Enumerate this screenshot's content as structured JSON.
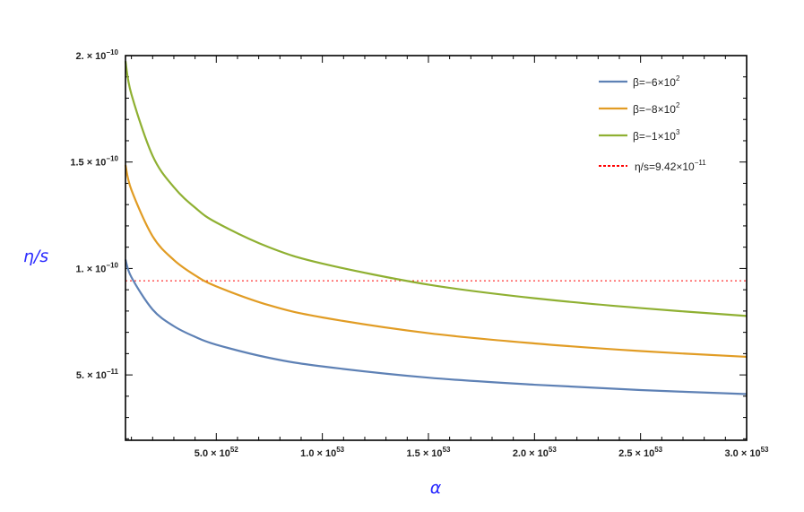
{
  "chart_data": {
    "type": "line",
    "title": "",
    "xlabel": "α",
    "ylabel": "η/s",
    "xlim": [
      7.2e+51,
      3e+53
    ],
    "ylim": [
      1.93e-11,
      2e-10
    ],
    "grid": false,
    "legend_position": "top-right",
    "x": [
      7.2e+51,
      1e+52,
      2e+52,
      3e+52,
      4e+52,
      5e+52,
      7.5e+52,
      1e+53,
      1.5e+53,
      2e+53,
      2.5e+53,
      3e+53
    ],
    "series": [
      {
        "name": "β=−6×10^2",
        "label_main": "β=−6×10",
        "label_exp": "2",
        "color": "#5e81b5",
        "values": [
          1.042e-10,
          9.59e-11,
          8.07e-11,
          7.29e-11,
          6.79e-11,
          6.42e-11,
          5.8e-11,
          5.4e-11,
          4.87e-11,
          4.54e-11,
          4.29e-11,
          4.1e-11
        ]
      },
      {
        "name": "β=−8×10^2",
        "label_main": "β=−8×10",
        "label_exp": "2",
        "color": "#e19c24",
        "values": [
          1.486e-10,
          1.369e-10,
          1.151e-10,
          1.04e-10,
          9.68e-11,
          9.16e-11,
          8.27e-11,
          7.7e-11,
          6.96e-11,
          6.48e-11,
          6.12e-11,
          5.85e-11
        ]
      },
      {
        "name": "β=−1×10^3",
        "label_main": "β=−1×10",
        "label_exp": "3",
        "color": "#8fb032",
        "values": [
          1.974e-10,
          1.818e-10,
          1.529e-10,
          1.382e-10,
          1.286e-10,
          1.216e-10,
          1.099e-10,
          1.023e-10,
          9.24e-11,
          8.6e-11,
          8.14e-11,
          7.77e-11
        ]
      }
    ],
    "reference_line": {
      "name": "η/s=9.42×10^-11",
      "label_main": "η/s=9.42×10",
      "label_exp": "−11",
      "value": 9.42e-11,
      "color": "#ff0000",
      "style": "dotted"
    },
    "x_ticks": [
      {
        "value": 5e+52,
        "mantissa": "5.0 × 10",
        "exp": "52"
      },
      {
        "value": 1e+53,
        "mantissa": "1.0 × 10",
        "exp": "53"
      },
      {
        "value": 1.5e+53,
        "mantissa": "1.5 × 10",
        "exp": "53"
      },
      {
        "value": 2e+53,
        "mantissa": "2.0 × 10",
        "exp": "53"
      },
      {
        "value": 2.5e+53,
        "mantissa": "2.5 × 10",
        "exp": "53"
      },
      {
        "value": 3e+53,
        "mantissa": "3.0 × 10",
        "exp": "53"
      }
    ],
    "y_ticks": [
      {
        "value": 5e-11,
        "mantissa": "5. × 10",
        "exp": "−11"
      },
      {
        "value": 1e-10,
        "mantissa": "1. × 10",
        "exp": "−10"
      },
      {
        "value": 1.5e-10,
        "mantissa": "1.5 × 10",
        "exp": "−10"
      },
      {
        "value": 2e-10,
        "mantissa": "2. × 10",
        "exp": "−10"
      }
    ]
  }
}
